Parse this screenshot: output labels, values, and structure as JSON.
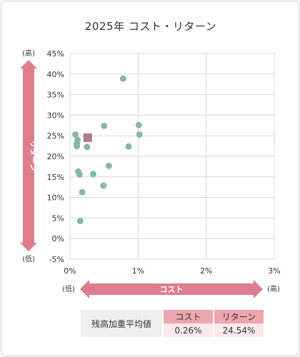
{
  "chart_data": {
    "type": "scatter",
    "title": "2025年 コスト・リターン",
    "xlabel": "コスト",
    "ylabel": "リターン",
    "x_low_label": "(低)",
    "x_high_label": "(高)",
    "y_low_label": "(低)",
    "y_high_label": "(高)",
    "xlim": [
      0,
      3
    ],
    "ylim": [
      -5,
      45
    ],
    "x_ticks": [
      0,
      1,
      2,
      3
    ],
    "x_tick_labels": [
      "0%",
      "1%",
      "2%",
      "3%"
    ],
    "y_ticks": [
      -5,
      0,
      5,
      10,
      15,
      20,
      25,
      30,
      35,
      40,
      45
    ],
    "y_tick_labels": [
      "-5%",
      "0%",
      "5%",
      "10%",
      "15%",
      "20%",
      "25%",
      "30%",
      "35%",
      "40%",
      "45%"
    ],
    "grid": true,
    "colors": {
      "points": "#86b9a0",
      "average_marker": "#b07d8a",
      "arrows": "#de7d8c"
    },
    "series": [
      {
        "values": [
          {
            "x": 0.08,
            "y": 25.3
          },
          {
            "x": 0.11,
            "y": 24.0
          },
          {
            "x": 0.1,
            "y": 23.1
          },
          {
            "x": 0.1,
            "y": 22.5
          },
          {
            "x": 0.25,
            "y": 22.3
          },
          {
            "x": 0.12,
            "y": 16.3
          },
          {
            "x": 0.14,
            "y": 15.6
          },
          {
            "x": 0.34,
            "y": 15.7
          },
          {
            "x": 0.57,
            "y": 17.7
          },
          {
            "x": 0.5,
            "y": 27.4
          },
          {
            "x": 0.78,
            "y": 38.9
          },
          {
            "x": 1.01,
            "y": 27.6
          },
          {
            "x": 1.02,
            "y": 25.3
          },
          {
            "x": 0.86,
            "y": 22.4
          },
          {
            "x": 0.49,
            "y": 12.9
          },
          {
            "x": 0.18,
            "y": 11.3
          },
          {
            "x": 0.15,
            "y": 4.3
          }
        ]
      }
    ],
    "weighted_average": {
      "x": 0.26,
      "y": 24.54
    }
  },
  "summary": {
    "row_label": "残高加重平均値",
    "cost_header": "コスト",
    "return_header": "リターン",
    "cost_value": "0.26%",
    "return_value": "24.54%"
  }
}
